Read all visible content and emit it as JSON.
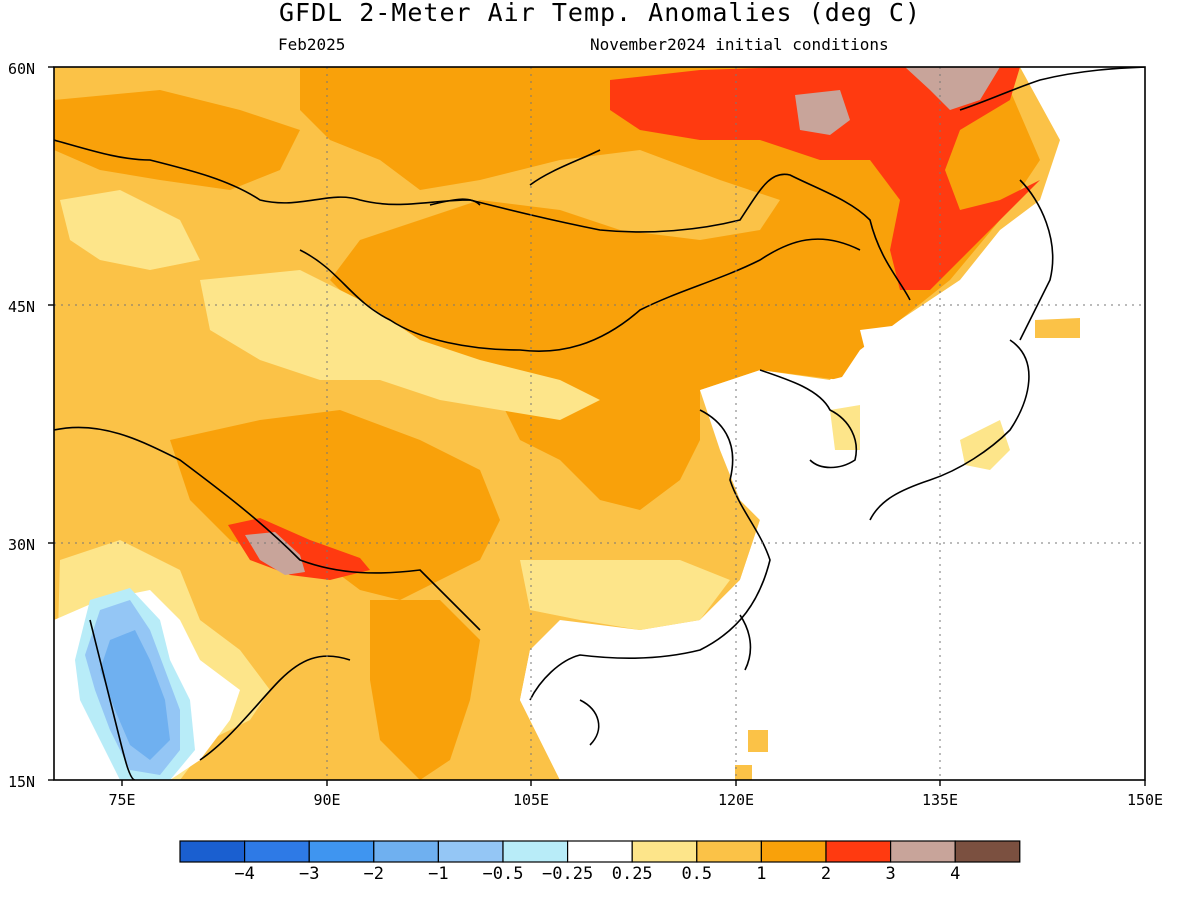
{
  "title": "GFDL 2-Meter Air Temp. Anomalies (deg C)",
  "subtitle_left": "Feb2025",
  "subtitle_right": "November2024 initial conditions",
  "map": {
    "lon_range": [
      70,
      150
    ],
    "lat_range": [
      15,
      60
    ],
    "lat_labels": [
      "60N",
      "45N",
      "30N",
      "15N"
    ],
    "lon_labels": [
      "75E",
      "90E",
      "105E",
      "120E",
      "135E",
      "150E"
    ],
    "gridlines": "dotted"
  },
  "colorbar": {
    "colors": [
      "#1a5fd0",
      "#2e7ae6",
      "#3f95f0",
      "#6fb0f0",
      "#94c6f5",
      "#b8ecf8",
      "#ffffff",
      "#fde58a",
      "#fbc247",
      "#f9a10a",
      "#ff3a10",
      "#c8a49a",
      "#7b5040"
    ],
    "labels": [
      "−4",
      "−3",
      "−2",
      "−1",
      "−0.5",
      "−0.25",
      "0.25",
      "0.5",
      "1",
      "2",
      "3",
      "4"
    ]
  }
}
